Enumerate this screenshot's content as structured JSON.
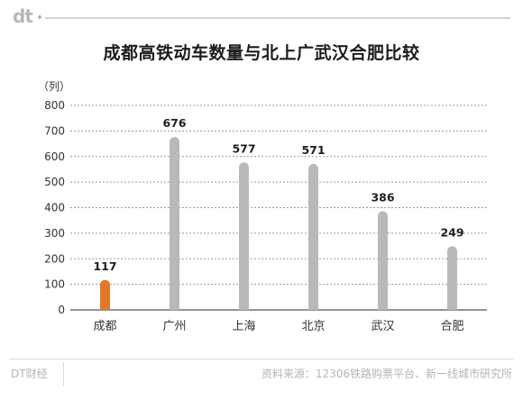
{
  "header": {
    "logo_text": "dt"
  },
  "chart_data": {
    "type": "bar",
    "title": "成都高铁动车数量与北上广武汉合肥比较",
    "unit_label": "（列）",
    "categories": [
      "成都",
      "广州",
      "上海",
      "北京",
      "武汉",
      "合肥"
    ],
    "values": [
      117,
      676,
      577,
      571,
      386,
      249
    ],
    "ylim": [
      0,
      800
    ],
    "yticks": [
      0,
      100,
      200,
      300,
      400,
      500,
      600,
      700,
      800
    ],
    "grid": true,
    "highlight_color": "#e0772a",
    "bar_color": "#b9b9b9",
    "highlight_category": "成都"
  },
  "footer": {
    "brand": "DT财经",
    "source": "资料来源：12306铁路购票平台、新一线城市研究所"
  }
}
